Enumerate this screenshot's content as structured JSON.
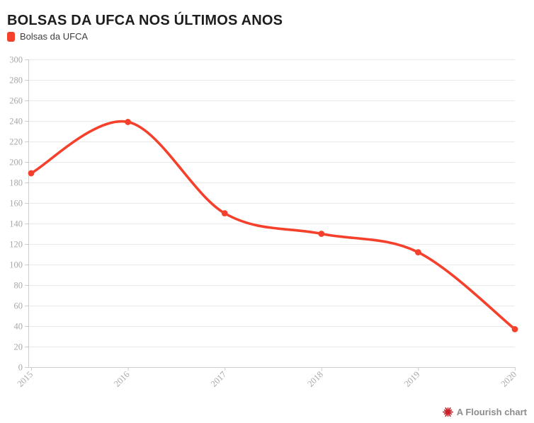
{
  "page": {
    "background": "#ffffff"
  },
  "header": {
    "title": "BOLSAS DA UFCA NOS ÚLTIMOS ANOS"
  },
  "legend": {
    "items": [
      {
        "label": "Bolsas da UFCA",
        "color": "#f5402c"
      }
    ]
  },
  "chart_data": {
    "type": "line",
    "title": "BOLSAS DA UFCA NOS ÚLTIMOS ANOS",
    "categories": [
      "2015",
      "2016",
      "2017",
      "2018",
      "2019",
      "2020"
    ],
    "series": [
      {
        "name": "Bolsas da UFCA",
        "color": "#f5402c",
        "values": [
          189,
          239,
          150,
          130,
          112,
          37
        ]
      }
    ],
    "ylim": [
      0,
      300
    ],
    "ytick_step": 20,
    "grid": "horizontal",
    "legend_position": "top-left",
    "curve": "smooth",
    "x_label_rotation": -45,
    "style": {
      "grid_color": "#e9e9e9",
      "axis_color": "#cdcdcd",
      "tick_label_color": "#a8a8a8"
    }
  },
  "footer": {
    "label": "A Flourish chart",
    "icon": "flourish-burst-icon",
    "icon_color": "#c4232b",
    "text_color": "#8c8c8c"
  }
}
